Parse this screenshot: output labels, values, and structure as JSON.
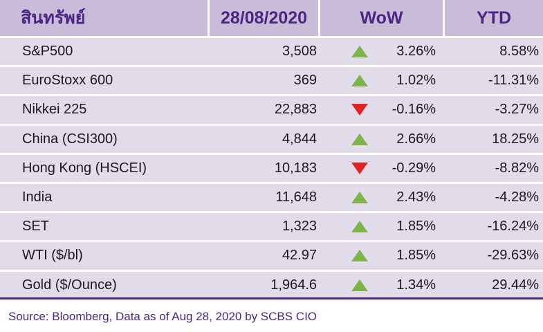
{
  "header": {
    "asset": "สินทรัพย์",
    "date": "28/08/2020",
    "wow": "WoW",
    "ytd": "YTD"
  },
  "rows": [
    {
      "name": "S&P500",
      "value": "3,508",
      "direction": "up",
      "wow": "3.26%",
      "ytd": "8.58%"
    },
    {
      "name": "EuroStoxx 600",
      "value": "369",
      "direction": "up",
      "wow": "1.02%",
      "ytd": "-11.31%"
    },
    {
      "name": "Nikkei 225",
      "value": "22,883",
      "direction": "down",
      "wow": "-0.16%",
      "ytd": "-3.27%"
    },
    {
      "name": "China (CSI300)",
      "value": "4,844",
      "direction": "up",
      "wow": "2.66%",
      "ytd": "18.25%"
    },
    {
      "name": "Hong Kong (HSCEI)",
      "value": "10,183",
      "direction": "down",
      "wow": "-0.29%",
      "ytd": "-8.82%"
    },
    {
      "name": "India",
      "value": "11,648",
      "direction": "up",
      "wow": "2.43%",
      "ytd": "-4.28%"
    },
    {
      "name": "SET",
      "value": "1,323",
      "direction": "up",
      "wow": "1.85%",
      "ytd": "-16.24%"
    },
    {
      "name": "WTI ($/bl)",
      "value": "42.97",
      "direction": "up",
      "wow": "1.85%",
      "ytd": "-29.63%"
    },
    {
      "name": "Gold ($/Ounce)",
      "value": "1,964.6",
      "direction": "up",
      "wow": "1.34%",
      "ytd": "29.44%"
    }
  ],
  "source": "Source: Bloomberg, Data as of Aug 28, 2020 by SCBS CIO",
  "colors": {
    "header_bg": "#c8bcd9",
    "header_text": "#4b2583",
    "row_bg": "#e2dbea",
    "up_arrow": "#7db54a",
    "down_arrow": "#e02222"
  },
  "icons": {
    "up": "triangle-up-icon",
    "down": "triangle-down-icon"
  }
}
